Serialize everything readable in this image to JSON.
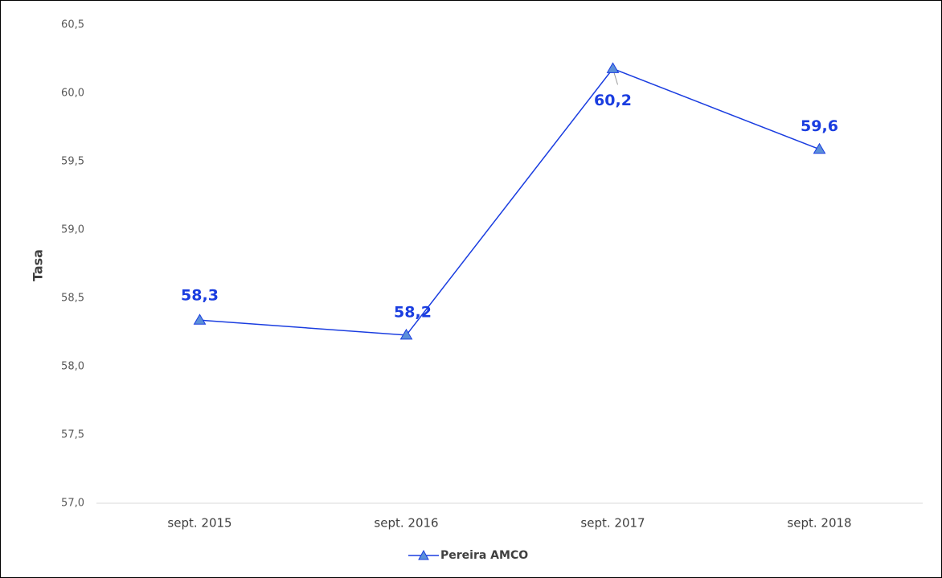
{
  "chart_data": {
    "type": "line",
    "y_label": "Tasa",
    "categories": [
      "sept. 2015",
      "sept. 2016",
      "sept. 2017",
      "sept. 2018"
    ],
    "series": [
      {
        "name": "Pereira AMCO",
        "color": "#1a3de0",
        "marker_color": "#5b8fd9",
        "values": [
          58.34,
          58.23,
          60.18,
          59.59
        ],
        "value_labels": [
          "58,3",
          "58,2",
          "60,2",
          "59,6"
        ]
      }
    ],
    "ylim": [
      57,
      60.5
    ],
    "yticks": [
      {
        "value": 57,
        "label": "57,0"
      },
      {
        "value": 57.5,
        "label": "57,5"
      },
      {
        "value": 58,
        "label": "58,0"
      },
      {
        "value": 58.5,
        "label": "58,5"
      },
      {
        "value": 59,
        "label": "59,0"
      },
      {
        "value": 59.5,
        "label": "59,5"
      },
      {
        "value": 60,
        "label": "60,0"
      },
      {
        "value": 60.5,
        "label": "60,5"
      }
    ],
    "grid": false
  }
}
